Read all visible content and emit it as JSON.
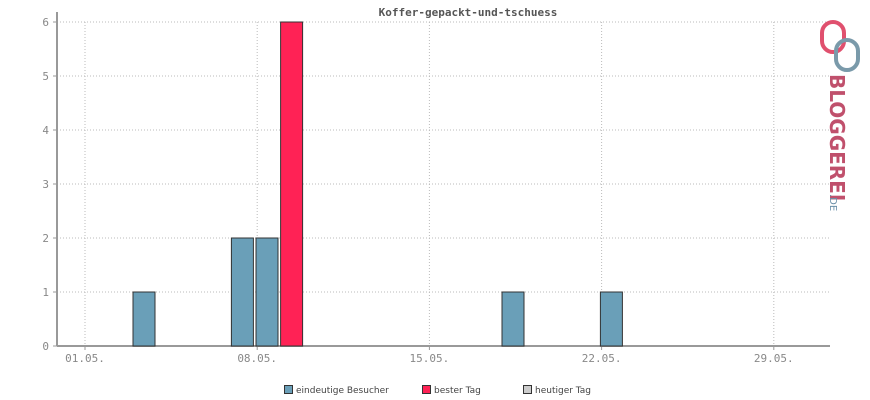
{
  "chart_data": {
    "type": "bar",
    "title": "Koffer-gepackt-und-tschuess",
    "x_tick_labels": [
      "01.05.",
      "08.05.",
      "15.05.",
      "22.05.",
      "29.05."
    ],
    "y_ticks": [
      0,
      1,
      2,
      3,
      4,
      5,
      6
    ],
    "ylim": [
      0,
      6
    ],
    "day_range": [
      1,
      31
    ],
    "grid": true,
    "legend_position": "bottom",
    "series": [
      {
        "name": "eindeutige Besucher",
        "color": "#6a9fb8",
        "points": [
          {
            "day": 4,
            "value": 1
          },
          {
            "day": 8,
            "value": 2
          },
          {
            "day": 9,
            "value": 2
          },
          {
            "day": 19,
            "value": 1
          },
          {
            "day": 23,
            "value": 1
          }
        ]
      },
      {
        "name": "bester Tag",
        "color": "#ff2255",
        "points": [
          {
            "day": 10,
            "value": 6
          }
        ]
      },
      {
        "name": "heutiger Tag",
        "color": "#cccccc",
        "points": []
      }
    ]
  },
  "logo": {
    "text": "BLOGGEREI",
    "suffix": ".DE"
  }
}
